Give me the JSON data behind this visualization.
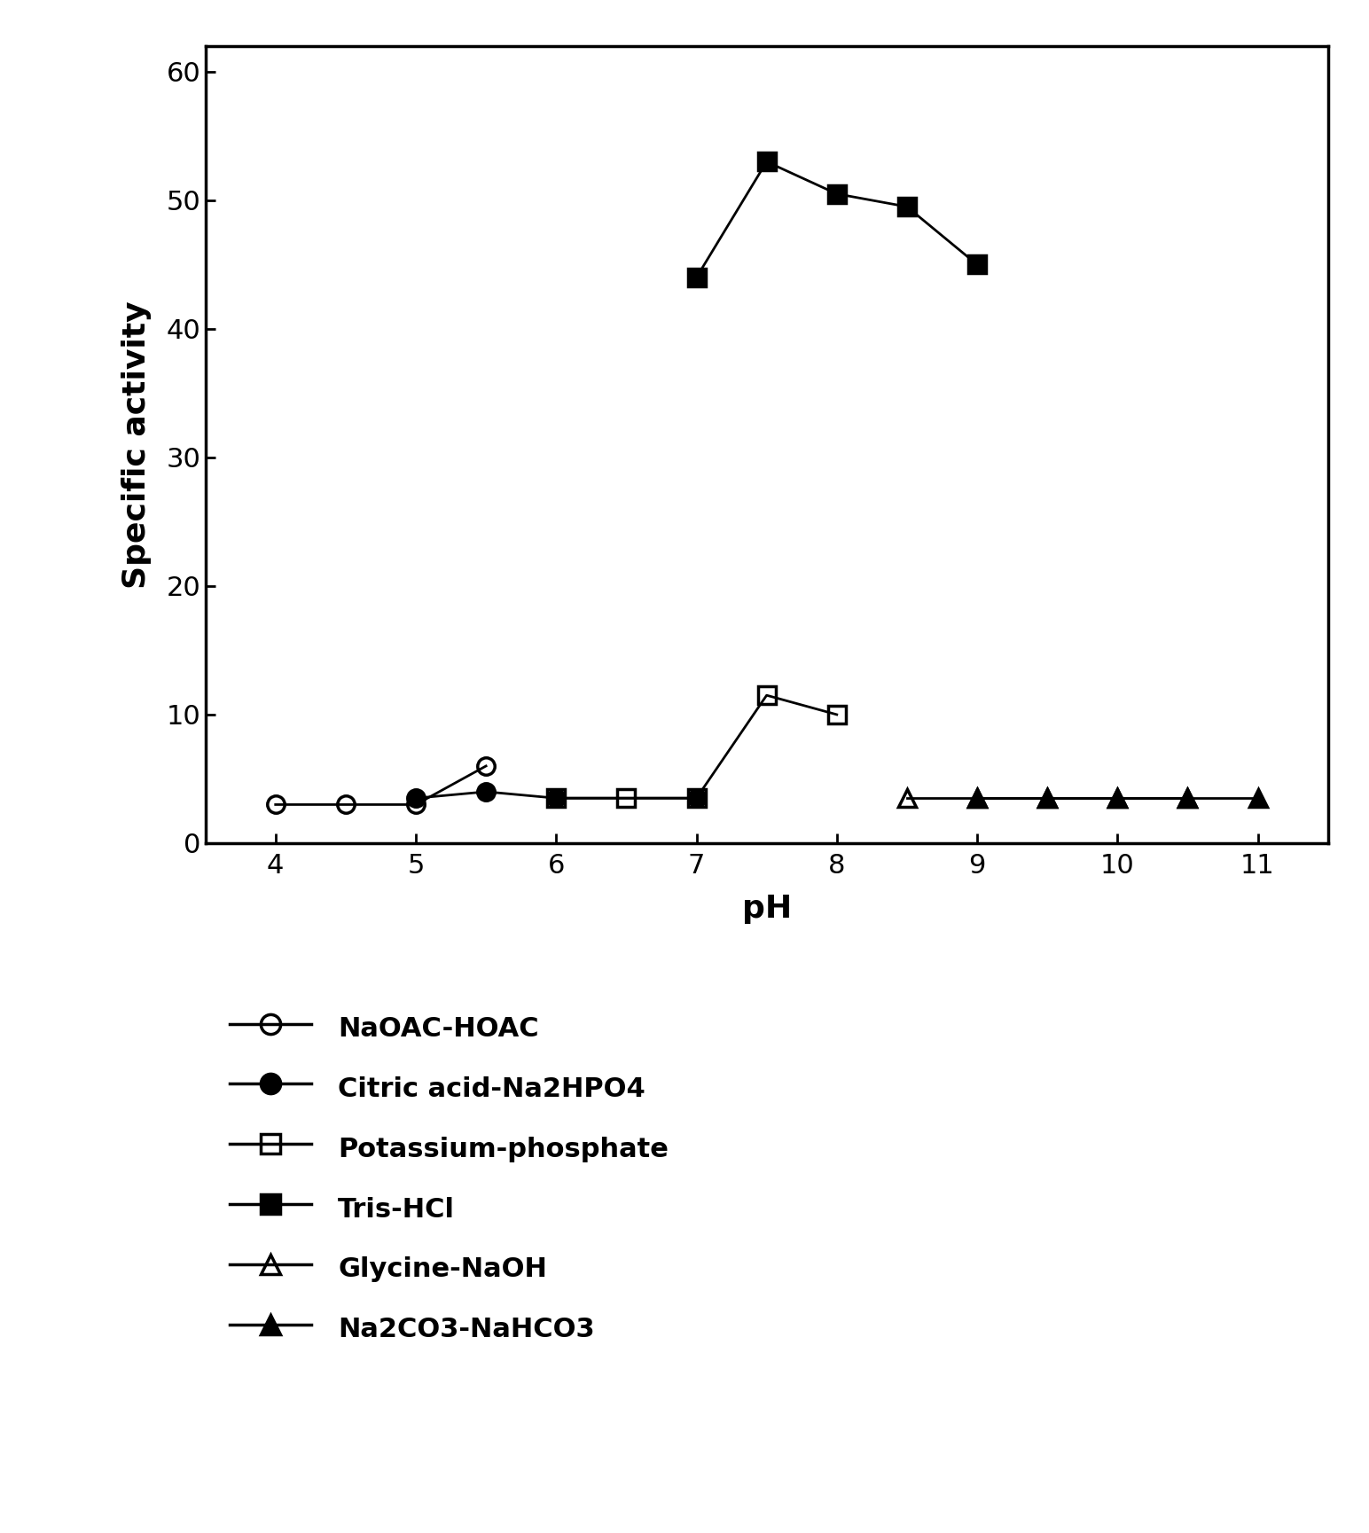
{
  "title": "",
  "xlabel": "pH",
  "ylabel": "Specific activity",
  "xlim": [
    3.5,
    11.5
  ],
  "ylim": [
    0,
    62
  ],
  "xticks": [
    4,
    5,
    6,
    7,
    8,
    9,
    10,
    11
  ],
  "yticks": [
    0,
    10,
    20,
    30,
    40,
    50,
    60
  ],
  "NaOAC_HOAC": {
    "x": [
      4.0,
      4.5,
      5.0,
      5.5
    ],
    "y": [
      3.0,
      3.0,
      3.0,
      6.0
    ],
    "label": "NaOAC-HOAC",
    "color": "black",
    "marker": "o",
    "fillstyle": "none",
    "markersize": 14,
    "linewidth": 2
  },
  "Citric_acid": {
    "x": [
      5.0,
      5.5,
      6.0,
      7.0
    ],
    "y": [
      3.5,
      4.0,
      3.5,
      3.5
    ],
    "label": "Citric acid-Na2HPO4",
    "color": "black",
    "marker": "o",
    "fillstyle": "full",
    "markersize": 14,
    "linewidth": 2
  },
  "Potassium_phosphate": {
    "x": [
      6.0,
      6.5,
      7.0,
      7.5,
      8.0
    ],
    "y": [
      3.5,
      3.5,
      3.5,
      11.5,
      10.0
    ],
    "label": "Potassium-phosphate",
    "color": "black",
    "marker": "s",
    "fillstyle": "none",
    "markersize": 14,
    "linewidth": 2
  },
  "Tris_HCl": {
    "x": [
      7.0,
      7.5,
      8.0,
      8.5,
      9.0
    ],
    "y": [
      44.0,
      53.0,
      50.5,
      49.5,
      45.0
    ],
    "label": "Tris-HCl",
    "color": "black",
    "marker": "s",
    "fillstyle": "full",
    "markersize": 14,
    "linewidth": 2
  },
  "Glycine_NaOH": {
    "x": [
      8.5,
      9.0,
      9.5,
      10.0,
      10.5
    ],
    "y": [
      3.5,
      3.5,
      3.5,
      3.5,
      3.5
    ],
    "label": "Glycine-NaOH",
    "color": "black",
    "marker": "^",
    "fillstyle": "none",
    "markersize": 14,
    "linewidth": 2
  },
  "Na2CO3_NaHCO3": {
    "x": [
      9.0,
      9.5,
      10.0,
      10.5,
      11.0
    ],
    "y": [
      3.5,
      3.5,
      3.5,
      3.5,
      3.5
    ],
    "label": "Na2CO3-NaHCO3",
    "color": "black",
    "marker": "^",
    "fillstyle": "full",
    "markersize": 14,
    "linewidth": 2
  },
  "legend_fontsize": 22,
  "axis_label_fontsize": 26,
  "tick_fontsize": 22
}
